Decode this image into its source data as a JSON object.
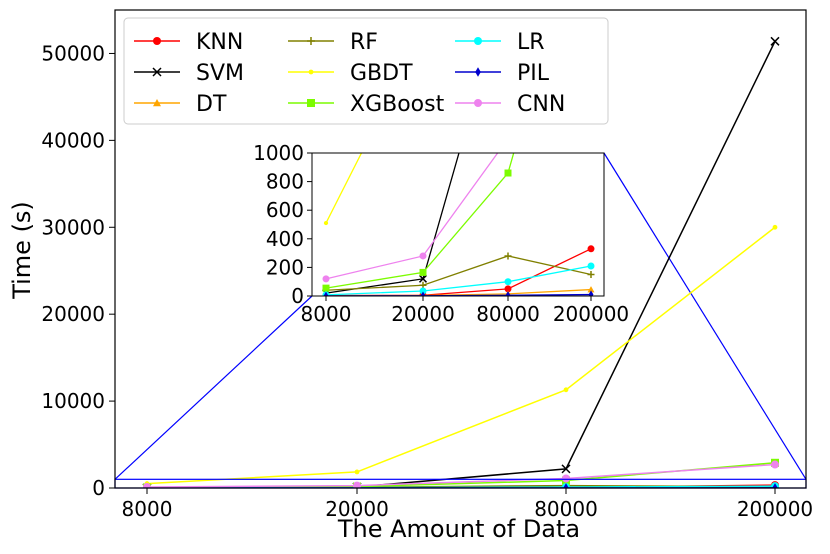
{
  "chart_data": {
    "type": "line",
    "xlabel": "The Amount of Data",
    "ylabel": "Time  (s)",
    "x_categories": [
      "8000",
      "20000",
      "80000",
      "200000"
    ],
    "ylim": [
      0,
      55000
    ],
    "yticks": [
      "0",
      "10000",
      "20000",
      "30000",
      "40000",
      "50000"
    ],
    "grid": false,
    "legend_position": "top-left",
    "series": [
      {
        "name": "KNN",
        "color": "#ff0000",
        "marker": "circle",
        "values": [
          3,
          5,
          50,
          330
        ]
      },
      {
        "name": "SVM",
        "color": "#000000",
        "marker": "x",
        "values": [
          20,
          120,
          2200,
          51400
        ]
      },
      {
        "name": "DT",
        "color": "#ffa500",
        "marker": "triangle",
        "values": [
          1,
          3,
          15,
          45
        ]
      },
      {
        "name": "RF",
        "color": "#808000",
        "marker": "plus",
        "values": [
          40,
          75,
          280,
          150
        ]
      },
      {
        "name": "GBDT",
        "color": "#ffff00",
        "marker": "point",
        "values": [
          510,
          1850,
          11300,
          30000
        ]
      },
      {
        "name": "XGBoost",
        "color": "#7cfc00",
        "marker": "square",
        "values": [
          55,
          165,
          860,
          2900
        ]
      },
      {
        "name": "LR",
        "color": "#00ffff",
        "marker": "circle",
        "values": [
          8,
          35,
          100,
          210
        ]
      },
      {
        "name": "PIL",
        "color": "#0000cd",
        "marker": "diamond",
        "values": [
          1,
          2,
          5,
          10
        ]
      },
      {
        "name": "CNN",
        "color": "#ee82ee",
        "marker": "circle",
        "values": [
          120,
          280,
          1100,
          2700
        ]
      }
    ],
    "inset": {
      "ylim": [
        0,
        1000
      ],
      "yticks": [
        "0",
        "200",
        "400",
        "600",
        "800",
        "1000"
      ],
      "x_categories": [
        "8000",
        "20000",
        "80000",
        "200000"
      ],
      "connector_color": "#0000ff"
    }
  }
}
